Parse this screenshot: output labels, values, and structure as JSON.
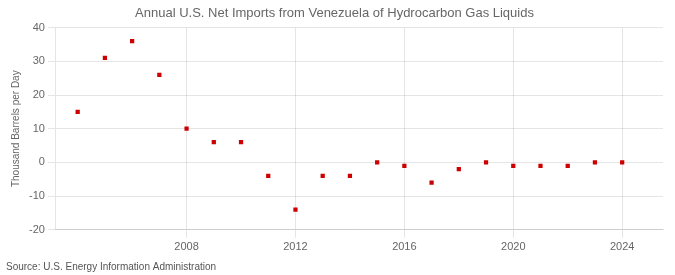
{
  "chart_data": {
    "type": "scatter",
    "title": "Annual U.S. Net Imports from Venezuela of Hydrocarbon Gas Liquids",
    "ylabel": "Thousand Barrels per Day",
    "annotation": "Source: U.S. Energy Information Administration",
    "x": [
      2004,
      2005,
      2006,
      2007,
      2008,
      2009,
      2010,
      2011,
      2012,
      2013,
      2014,
      2015,
      2016,
      2017,
      2018,
      2019,
      2020,
      2021,
      2022,
      2023,
      2024
    ],
    "values": [
      15,
      31,
      36,
      26,
      10,
      6,
      6,
      -4,
      -14,
      -4,
      -4,
      0,
      -1,
      -6,
      -2,
      0,
      -1,
      -1,
      -1,
      0,
      0
    ],
    "color": "#cc0000",
    "marker": "square",
    "xlim": [
      2003.2,
      2025.5
    ],
    "xticks": [
      2008,
      2012,
      2016,
      2020,
      2024
    ],
    "ylim": [
      -20,
      40
    ],
    "yticks": [
      -20,
      -10,
      0,
      10,
      20,
      30,
      40
    ],
    "grid": true
  }
}
